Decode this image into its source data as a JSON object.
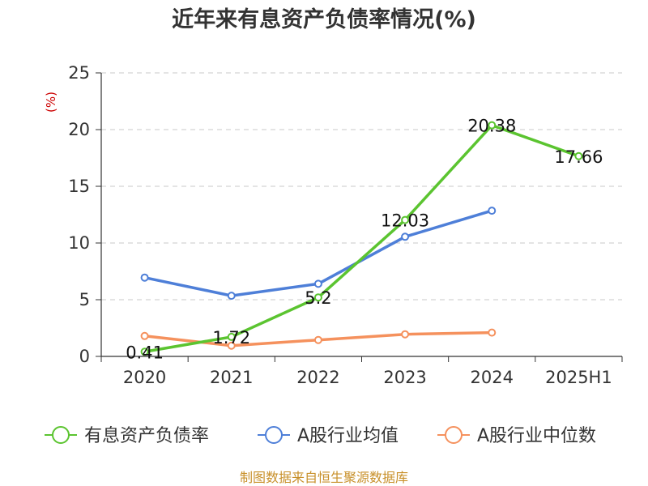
{
  "chart_data": {
    "type": "line",
    "title": "近年来有息资产负债率情况(%)",
    "ylabel": "(%)",
    "categories": [
      "2020",
      "2021",
      "2022",
      "2023",
      "2024",
      "2025H1"
    ],
    "yticks": [
      0,
      5,
      10,
      15,
      20,
      25
    ],
    "ylim": [
      0,
      25
    ],
    "grid": true,
    "legend_position": "bottom",
    "series": [
      {
        "name": "有息资产负债率",
        "color": "#5bc430",
        "values": [
          0.41,
          1.72,
          5.2,
          12.03,
          20.38,
          17.66
        ],
        "labels": [
          "0.41",
          "1.72",
          "5.2",
          "12.03",
          "20.38",
          "17.66"
        ]
      },
      {
        "name": "A股行业均值",
        "color": "#4e7fd8",
        "values": [
          6.95,
          5.35,
          6.4,
          10.55,
          12.85,
          null
        ]
      },
      {
        "name": "A股行业中位数",
        "color": "#f5915d",
        "values": [
          1.8,
          0.95,
          1.45,
          1.95,
          2.1,
          null
        ]
      }
    ]
  },
  "source": "制图数据来自恒生聚源数据库"
}
